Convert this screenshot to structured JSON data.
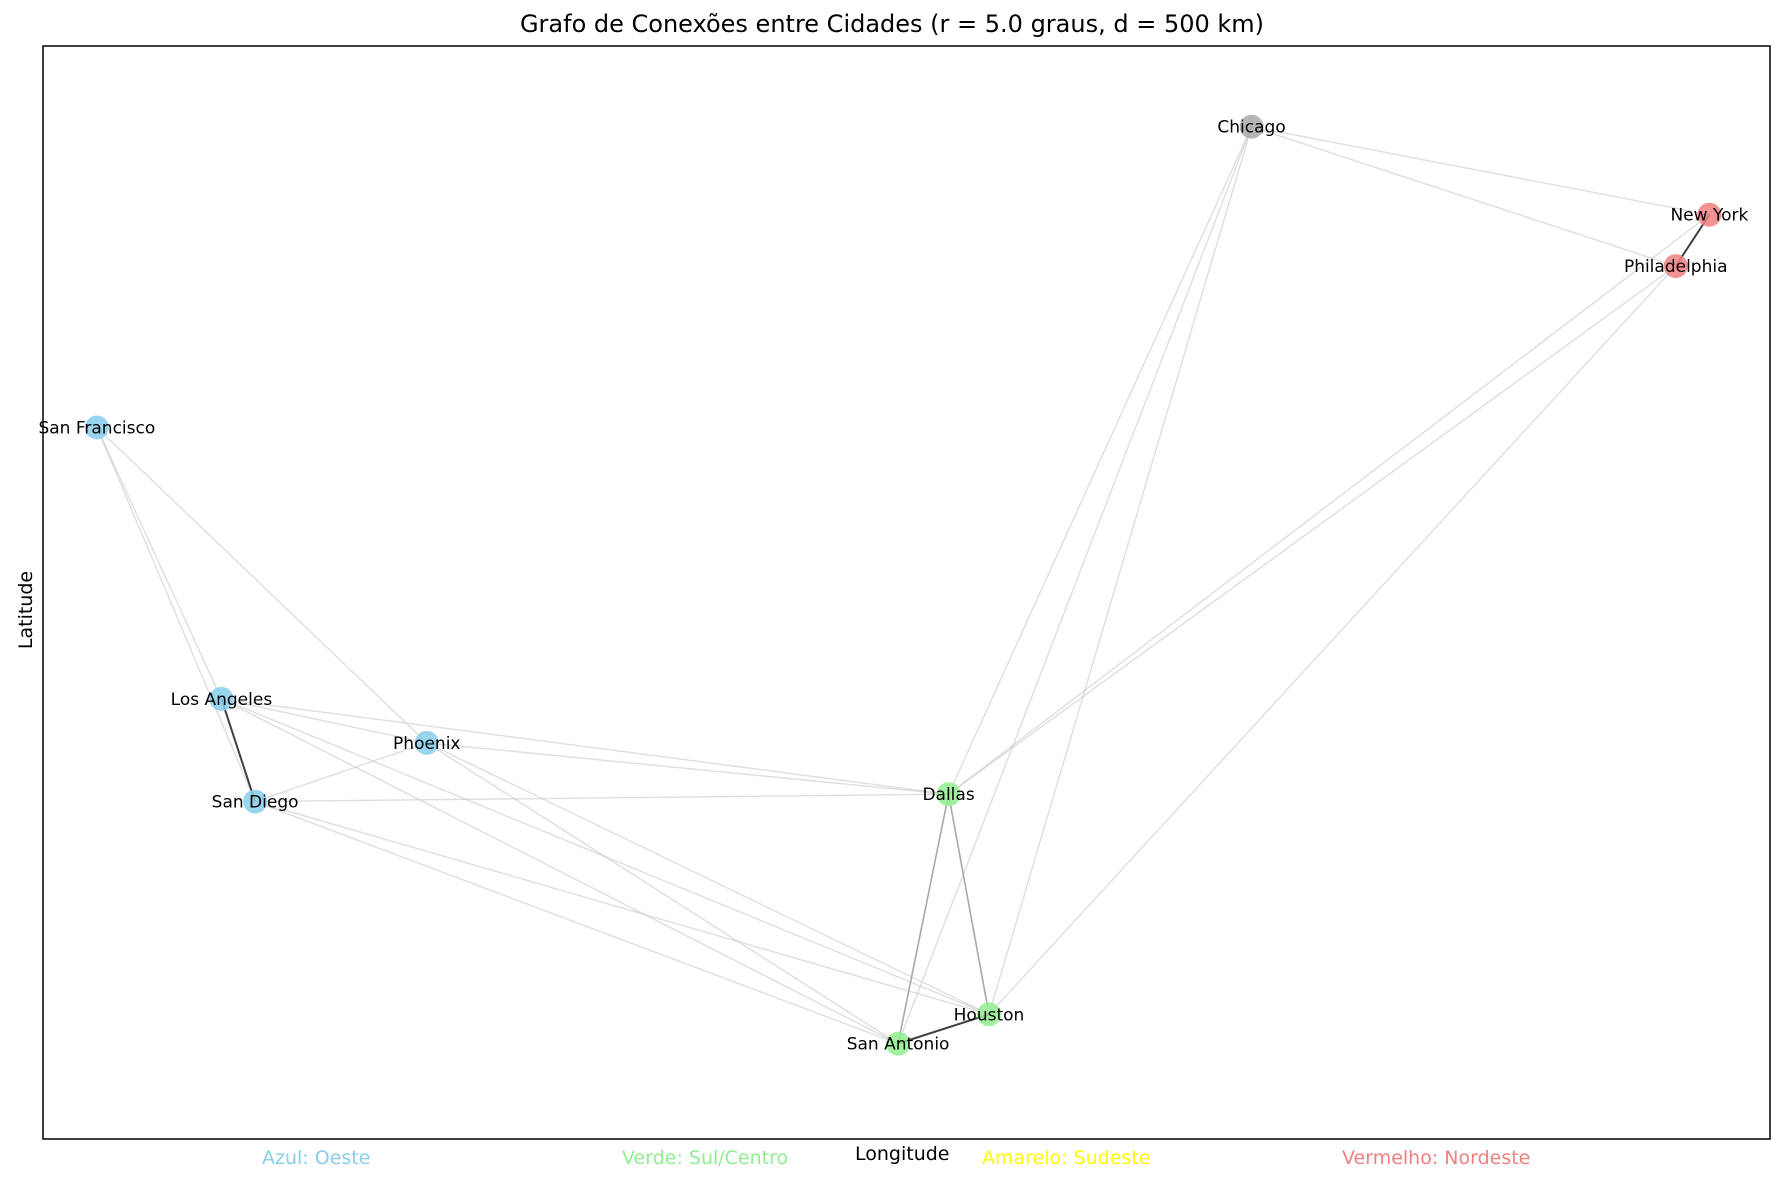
{
  "title": "Grafo de Conexões entre Cidades (r = 5.0 graus, d = 500 km)",
  "xlabel": "Longitude",
  "ylabel": "Latitude",
  "legend": {
    "azul": "Azul: Oeste",
    "verde": "Verde: Sul/Centro",
    "amarelo": "Amarelo: Sudeste",
    "vermelho": "Vermelho: Nordeste"
  },
  "colors": {
    "oeste": "#87ceeb",
    "sul_centro": "#90ee90",
    "nordeste": "#f08080",
    "other": "#a9a9a9"
  },
  "chart_data": {
    "type": "scatter",
    "title": "Grafo de Conexões entre Cidades (r = 5.0 graus, d = 500 km)",
    "xlabel": "Longitude",
    "ylabel": "Latitude",
    "grid": false,
    "xlim": [
      -123.5,
      -72.2
    ],
    "ylim": [
      28.1,
      43.0
    ],
    "nodes": [
      {
        "name": "New York",
        "lon": -74.0,
        "lat": 40.7,
        "region": "nordeste"
      },
      {
        "name": "Los Angeles",
        "lon": -118.2,
        "lat": 34.1,
        "region": "oeste"
      },
      {
        "name": "Chicago",
        "lon": -87.6,
        "lat": 41.9,
        "region": "other"
      },
      {
        "name": "Houston",
        "lon": -95.4,
        "lat": 29.8,
        "region": "sul_centro"
      },
      {
        "name": "Phoenix",
        "lon": -112.1,
        "lat": 33.5,
        "region": "oeste"
      },
      {
        "name": "Philadelphia",
        "lon": -75.0,
        "lat": 40.0,
        "region": "nordeste"
      },
      {
        "name": "San Antonio",
        "lon": -98.1,
        "lat": 29.4,
        "region": "sul_centro"
      },
      {
        "name": "San Diego",
        "lon": -117.2,
        "lat": 32.7,
        "region": "oeste"
      },
      {
        "name": "Dallas",
        "lon": -96.6,
        "lat": 32.8,
        "region": "sul_centro"
      },
      {
        "name": "San Francisco",
        "lon": -121.9,
        "lat": 37.8,
        "region": "oeste"
      }
    ],
    "edges": [
      {
        "source": "New York",
        "target": "Philadelphia",
        "strength": "strong"
      },
      {
        "source": "Los Angeles",
        "target": "San Diego",
        "strength": "strong"
      },
      {
        "source": "San Antonio",
        "target": "Houston",
        "strength": "strong"
      },
      {
        "source": "Dallas",
        "target": "Houston",
        "strength": "medium"
      },
      {
        "source": "Dallas",
        "target": "San Antonio",
        "strength": "medium"
      },
      {
        "source": "Chicago",
        "target": "New York",
        "strength": "weak"
      },
      {
        "source": "Chicago",
        "target": "Philadelphia",
        "strength": "weak"
      },
      {
        "source": "Chicago",
        "target": "Dallas",
        "strength": "weak"
      },
      {
        "source": "Chicago",
        "target": "San Antonio",
        "strength": "weak"
      },
      {
        "source": "Chicago",
        "target": "Houston",
        "strength": "weak"
      },
      {
        "source": "Philadelphia",
        "target": "Dallas",
        "strength": "weak"
      },
      {
        "source": "New York",
        "target": "Dallas",
        "strength": "weak"
      },
      {
        "source": "Philadelphia",
        "target": "Houston",
        "strength": "weak"
      },
      {
        "source": "San Francisco",
        "target": "Los Angeles",
        "strength": "weak"
      },
      {
        "source": "San Francisco",
        "target": "San Diego",
        "strength": "weak"
      },
      {
        "source": "San Francisco",
        "target": "Phoenix",
        "strength": "weak"
      },
      {
        "source": "Los Angeles",
        "target": "Phoenix",
        "strength": "weak"
      },
      {
        "source": "Los Angeles",
        "target": "Dallas",
        "strength": "weak"
      },
      {
        "source": "Los Angeles",
        "target": "San Antonio",
        "strength": "weak"
      },
      {
        "source": "Los Angeles",
        "target": "Houston",
        "strength": "weak"
      },
      {
        "source": "Phoenix",
        "target": "San Diego",
        "strength": "weak"
      },
      {
        "source": "Phoenix",
        "target": "Dallas",
        "strength": "weak"
      },
      {
        "source": "Phoenix",
        "target": "San Antonio",
        "strength": "weak"
      },
      {
        "source": "Phoenix",
        "target": "Houston",
        "strength": "weak"
      },
      {
        "source": "San Diego",
        "target": "Dallas",
        "strength": "weak"
      },
      {
        "source": "San Diego",
        "target": "San Antonio",
        "strength": "weak"
      },
      {
        "source": "San Diego",
        "target": "Houston",
        "strength": "weak"
      }
    ]
  }
}
